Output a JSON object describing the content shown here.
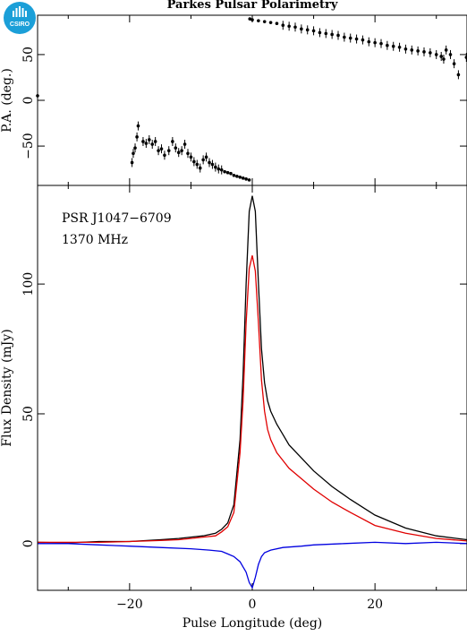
{
  "logo": {
    "text": "CSIRO",
    "color": "#1b9fd8"
  },
  "chart_data": [
    {
      "type": "scatter",
      "panel": "top",
      "title": "Parkes Pulsar Polarimetry",
      "xlabel": "",
      "ylabel": "P.A. (deg.)",
      "xlim": [
        -35,
        35
      ],
      "ylim": [
        -93,
        93
      ],
      "yticks": [
        -50,
        0,
        50
      ],
      "series": [
        {
          "color": "#000000",
          "points": [
            [
              -35,
              5
            ],
            [
              -19.6,
              -68
            ],
            [
              -19.4,
              -58
            ],
            [
              -19.1,
              -52
            ],
            [
              -18.8,
              -40
            ],
            [
              -18.6,
              -28
            ],
            [
              -17.8,
              -45
            ],
            [
              -17.3,
              -47
            ],
            [
              -16.8,
              -43
            ],
            [
              -16.3,
              -48
            ],
            [
              -15.8,
              -45
            ],
            [
              -15.3,
              -55
            ],
            [
              -14.8,
              -53
            ],
            [
              -14.3,
              -60
            ],
            [
              -13.6,
              -55
            ],
            [
              -13.0,
              -45
            ],
            [
              -12.5,
              -52
            ],
            [
              -12.0,
              -57
            ],
            [
              -11.5,
              -55
            ],
            [
              -11.0,
              -48
            ],
            [
              -10.5,
              -58
            ],
            [
              -10.0,
              -62
            ],
            [
              -9.5,
              -67
            ],
            [
              -9.0,
              -70
            ],
            [
              -8.5,
              -74
            ],
            [
              -8.0,
              -65
            ],
            [
              -7.5,
              -62
            ],
            [
              -7.0,
              -68
            ],
            [
              -6.5,
              -70
            ],
            [
              -6.0,
              -73
            ],
            [
              -5.5,
              -75
            ],
            [
              -5.0,
              -76
            ],
            [
              -4.5,
              -78
            ],
            [
              -4.0,
              -79
            ],
            [
              -3.5,
              -80
            ],
            [
              -3.0,
              -82
            ],
            [
              -2.5,
              -83
            ],
            [
              -2.0,
              -84
            ],
            [
              -1.5,
              -85
            ],
            [
              -1.0,
              -86
            ],
            [
              -0.5,
              -87
            ],
            [
              -0.4,
              89
            ],
            [
              0,
              88
            ],
            [
              1,
              87
            ],
            [
              2,
              86
            ],
            [
              3,
              85
            ],
            [
              4,
              84
            ],
            [
              5,
              82
            ],
            [
              6,
              81
            ],
            [
              7,
              80
            ],
            [
              8,
              78
            ],
            [
              9,
              77
            ],
            [
              10,
              76
            ],
            [
              11,
              74
            ],
            [
              12,
              73
            ],
            [
              13,
              72
            ],
            [
              14,
              71
            ],
            [
              15,
              69
            ],
            [
              16,
              68
            ],
            [
              17,
              67
            ],
            [
              18,
              66
            ],
            [
              19,
              64
            ],
            [
              20,
              63
            ],
            [
              21,
              62
            ],
            [
              22,
              60
            ],
            [
              23,
              59
            ],
            [
              24,
              58
            ],
            [
              25,
              56
            ],
            [
              26,
              55
            ],
            [
              27,
              54
            ],
            [
              28,
              53
            ],
            [
              29,
              52
            ],
            [
              30,
              50
            ],
            [
              30.8,
              48
            ],
            [
              31.2,
              45
            ],
            [
              31.6,
              55
            ],
            [
              32.3,
              50
            ],
            [
              32.9,
              40
            ],
            [
              33.6,
              28
            ],
            [
              34.9,
              47
            ]
          ]
        }
      ]
    },
    {
      "type": "line",
      "panel": "bottom",
      "source": "PSR J1047−6709",
      "frequency": "1370 MHz",
      "xlabel": "Pulse Longitude (deg)",
      "ylabel": "Flux Density (mJy)",
      "xlim": [
        -35,
        35
      ],
      "ylim": [
        -18,
        138
      ],
      "xticks": [
        -20,
        0,
        20
      ],
      "yticks": [
        0,
        50,
        100
      ],
      "series": [
        {
          "color": "#000000",
          "points": [
            [
              -35,
              0.5
            ],
            [
              -30,
              0.3
            ],
            [
              -25,
              0.8
            ],
            [
              -20,
              0.8
            ],
            [
              -15,
              1.5
            ],
            [
              -12,
              2
            ],
            [
              -10,
              2.5
            ],
            [
              -8,
              3
            ],
            [
              -6,
              4
            ],
            [
              -5,
              5.5
            ],
            [
              -4,
              8
            ],
            [
              -3,
              15
            ],
            [
              -2,
              40
            ],
            [
              -1.5,
              65
            ],
            [
              -1,
              100
            ],
            [
              -0.5,
              128
            ],
            [
              0,
              134
            ],
            [
              0.5,
              128
            ],
            [
              1,
              100
            ],
            [
              1.5,
              75
            ],
            [
              2,
              62
            ],
            [
              2.5,
              55
            ],
            [
              3,
              51
            ],
            [
              4,
              46
            ],
            [
              5,
              42
            ],
            [
              6,
              38
            ],
            [
              8,
              33
            ],
            [
              10,
              28
            ],
            [
              13,
              22
            ],
            [
              16,
              17
            ],
            [
              20,
              11
            ],
            [
              25,
              6
            ],
            [
              30,
              3
            ],
            [
              35,
              1.5
            ]
          ]
        },
        {
          "color": "#e00000",
          "points": [
            [
              -35,
              0.5
            ],
            [
              -30,
              0.5
            ],
            [
              -25,
              0.5
            ],
            [
              -20,
              0.8
            ],
            [
              -15,
              1.2
            ],
            [
              -12,
              1.5
            ],
            [
              -10,
              2
            ],
            [
              -8,
              2.5
            ],
            [
              -6,
              3
            ],
            [
              -5,
              4.5
            ],
            [
              -4,
              6.5
            ],
            [
              -3,
              12
            ],
            [
              -2,
              35
            ],
            [
              -1.5,
              55
            ],
            [
              -1,
              85
            ],
            [
              -0.5,
              106
            ],
            [
              0,
              111
            ],
            [
              0.5,
              105
            ],
            [
              1,
              85
            ],
            [
              1.5,
              63
            ],
            [
              2,
              51
            ],
            [
              2.5,
              44
            ],
            [
              3,
              40
            ],
            [
              4,
              35
            ],
            [
              5,
              32
            ],
            [
              6,
              29
            ],
            [
              8,
              25
            ],
            [
              10,
              21
            ],
            [
              13,
              16
            ],
            [
              16,
              12
            ],
            [
              20,
              7
            ],
            [
              25,
              4
            ],
            [
              30,
              2
            ],
            [
              35,
              1
            ]
          ]
        },
        {
          "color": "#0000e0",
          "points": [
            [
              -35,
              0
            ],
            [
              -30,
              0
            ],
            [
              -25,
              -0.5
            ],
            [
              -20,
              -1
            ],
            [
              -15,
              -1.5
            ],
            [
              -10,
              -2
            ],
            [
              -7,
              -2.5
            ],
            [
              -5,
              -3
            ],
            [
              -4,
              -4
            ],
            [
              -3,
              -5
            ],
            [
              -2,
              -7
            ],
            [
              -1.5,
              -9
            ],
            [
              -1,
              -11
            ],
            [
              -0.5,
              -15
            ],
            [
              0,
              -17
            ],
            [
              0.5,
              -13
            ],
            [
              1,
              -8
            ],
            [
              1.5,
              -5
            ],
            [
              2,
              -3.5
            ],
            [
              3,
              -2.5
            ],
            [
              5,
              -1.5
            ],
            [
              8,
              -1
            ],
            [
              10,
              -0.5
            ],
            [
              15,
              0
            ],
            [
              20,
              0.5
            ],
            [
              25,
              0
            ],
            [
              30,
              0.5
            ],
            [
              35,
              0
            ]
          ]
        }
      ]
    }
  ]
}
